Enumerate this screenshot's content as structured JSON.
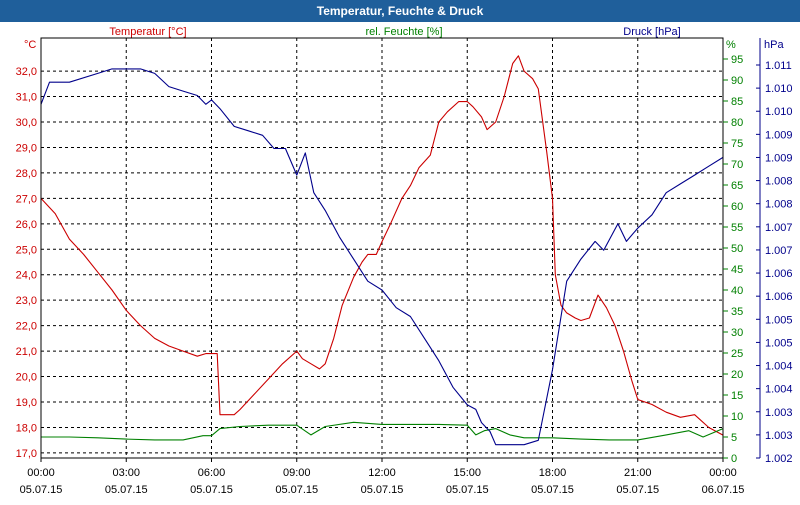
{
  "window": {
    "title": "Temperatur, Feuchte & Druck"
  },
  "chart_data": {
    "type": "line",
    "title": "Temperatur, Feuchte & Druck",
    "x": {
      "ticks": [
        {
          "time": "00:00",
          "date": "05.07.15"
        },
        {
          "time": "03:00",
          "date": "05.07.15"
        },
        {
          "time": "06:00",
          "date": "05.07.15"
        },
        {
          "time": "09:00",
          "date": "05.07.15"
        },
        {
          "time": "12:00",
          "date": "05.07.15"
        },
        {
          "time": "15:00",
          "date": "05.07.15"
        },
        {
          "time": "18:00",
          "date": "05.07.15"
        },
        {
          "time": "21:00",
          "date": "05.07.15"
        },
        {
          "time": "00:00",
          "date": "06.07.15"
        }
      ],
      "range_hours": [
        0,
        24
      ]
    },
    "axes": {
      "temperature": {
        "name": "Temperatur [°C]",
        "unit": "°C",
        "color": "#cc0000",
        "ylim": [
          16.8,
          33.3
        ],
        "ticks": [
          "17,0",
          "18,0",
          "19,0",
          "20,0",
          "21,0",
          "22,0",
          "23,0",
          "24,0",
          "25,0",
          "26,0",
          "27,0",
          "28,0",
          "29,0",
          "30,0",
          "31,0",
          "32,0"
        ]
      },
      "humidity": {
        "name": "rel. Feuchte [%]",
        "unit": "%",
        "color": "#008000",
        "ylim": [
          0,
          100
        ],
        "ticks": [
          "0",
          "5",
          "10",
          "15",
          "20",
          "25",
          "30",
          "35",
          "40",
          "45",
          "50",
          "55",
          "60",
          "65",
          "70",
          "75",
          "80",
          "85",
          "90",
          "95"
        ]
      },
      "pressure": {
        "name": "Druck [hPa]",
        "unit": "hPa",
        "color": "#00008b",
        "ylim": [
          1002.0,
          1011.5
        ],
        "ticks": [
          "1.002",
          "1.003",
          "1.003",
          "1.004",
          "1.004",
          "1.005",
          "1.005",
          "1.006",
          "1.006",
          "1.007",
          "1.007",
          "1.008",
          "1.008",
          "1.009",
          "1.009",
          "1.010",
          "1.010",
          "1.011"
        ]
      }
    },
    "series": [
      {
        "name": "Temperatur [°C]",
        "axis": "temperature",
        "color": "#cc0000",
        "points": [
          [
            0.0,
            27.0
          ],
          [
            0.5,
            26.4
          ],
          [
            1.0,
            25.4
          ],
          [
            1.5,
            24.8
          ],
          [
            2.0,
            24.1
          ],
          [
            2.5,
            23.4
          ],
          [
            3.0,
            22.6
          ],
          [
            3.5,
            22.0
          ],
          [
            4.0,
            21.5
          ],
          [
            4.5,
            21.2
          ],
          [
            5.0,
            21.0
          ],
          [
            5.5,
            20.8
          ],
          [
            5.8,
            20.9
          ],
          [
            6.0,
            20.9
          ],
          [
            6.2,
            20.9
          ],
          [
            6.3,
            18.5
          ],
          [
            6.5,
            18.5
          ],
          [
            6.8,
            18.5
          ],
          [
            7.0,
            18.7
          ],
          [
            7.5,
            19.3
          ],
          [
            8.0,
            19.9
          ],
          [
            8.5,
            20.5
          ],
          [
            9.0,
            21.0
          ],
          [
            9.2,
            20.7
          ],
          [
            9.5,
            20.5
          ],
          [
            9.8,
            20.3
          ],
          [
            10.0,
            20.5
          ],
          [
            10.3,
            21.5
          ],
          [
            10.6,
            22.8
          ],
          [
            11.0,
            23.9
          ],
          [
            11.3,
            24.5
          ],
          [
            11.5,
            24.8
          ],
          [
            11.8,
            24.8
          ],
          [
            12.0,
            25.3
          ],
          [
            12.3,
            26.0
          ],
          [
            12.7,
            27.0
          ],
          [
            13.0,
            27.5
          ],
          [
            13.3,
            28.2
          ],
          [
            13.7,
            28.7
          ],
          [
            14.0,
            30.0
          ],
          [
            14.3,
            30.4
          ],
          [
            14.7,
            30.8
          ],
          [
            15.0,
            30.8
          ],
          [
            15.2,
            30.6
          ],
          [
            15.5,
            30.2
          ],
          [
            15.7,
            29.7
          ],
          [
            16.0,
            30.0
          ],
          [
            16.3,
            31.0
          ],
          [
            16.6,
            32.3
          ],
          [
            16.8,
            32.6
          ],
          [
            17.0,
            32.0
          ],
          [
            17.3,
            31.7
          ],
          [
            17.5,
            31.3
          ],
          [
            17.8,
            28.8
          ],
          [
            18.0,
            27.0
          ],
          [
            18.1,
            24.0
          ],
          [
            18.3,
            22.8
          ],
          [
            18.5,
            22.5
          ],
          [
            18.8,
            22.3
          ],
          [
            19.0,
            22.2
          ],
          [
            19.3,
            22.3
          ],
          [
            19.6,
            23.2
          ],
          [
            19.9,
            22.7
          ],
          [
            20.2,
            22.0
          ],
          [
            20.5,
            21.0
          ],
          [
            20.8,
            19.8
          ],
          [
            21.0,
            19.1
          ],
          [
            21.5,
            18.9
          ],
          [
            22.0,
            18.6
          ],
          [
            22.5,
            18.4
          ],
          [
            23.0,
            18.5
          ],
          [
            23.5,
            18.0
          ],
          [
            24.0,
            17.7
          ]
        ]
      },
      {
        "name": "rel. Feuchte [%]",
        "axis": "humidity",
        "color": "#008000",
        "points": [
          [
            0.0,
            5.0
          ],
          [
            1.0,
            5.0
          ],
          [
            2.0,
            4.8
          ],
          [
            3.0,
            4.5
          ],
          [
            4.0,
            4.3
          ],
          [
            5.0,
            4.3
          ],
          [
            5.7,
            5.3
          ],
          [
            6.0,
            5.3
          ],
          [
            6.3,
            7.0
          ],
          [
            7.0,
            7.5
          ],
          [
            8.0,
            7.8
          ],
          [
            9.0,
            7.8
          ],
          [
            9.5,
            5.5
          ],
          [
            10.0,
            7.5
          ],
          [
            11.0,
            8.5
          ],
          [
            12.0,
            8.0
          ],
          [
            13.0,
            8.0
          ],
          [
            14.0,
            8.0
          ],
          [
            15.0,
            7.8
          ],
          [
            15.3,
            5.5
          ],
          [
            15.6,
            6.5
          ],
          [
            16.0,
            7.0
          ],
          [
            16.5,
            5.5
          ],
          [
            17.0,
            4.8
          ],
          [
            18.0,
            4.8
          ],
          [
            19.0,
            4.5
          ],
          [
            20.0,
            4.3
          ],
          [
            21.0,
            4.3
          ],
          [
            22.0,
            5.5
          ],
          [
            22.8,
            6.5
          ],
          [
            23.3,
            5.0
          ],
          [
            24.0,
            7.0
          ]
        ]
      },
      {
        "name": "Druck [hPa]",
        "axis": "pressure",
        "color": "#00008b",
        "points": [
          [
            0.0,
            1010.0
          ],
          [
            0.3,
            1010.5
          ],
          [
            1.0,
            1010.5
          ],
          [
            2.0,
            1010.7
          ],
          [
            2.5,
            1010.8
          ],
          [
            3.0,
            1010.8
          ],
          [
            3.5,
            1010.8
          ],
          [
            4.0,
            1010.7
          ],
          [
            4.5,
            1010.4
          ],
          [
            5.0,
            1010.3
          ],
          [
            5.5,
            1010.2
          ],
          [
            5.8,
            1010.0
          ],
          [
            6.0,
            1010.1
          ],
          [
            6.3,
            1009.9
          ],
          [
            6.8,
            1009.5
          ],
          [
            7.3,
            1009.4
          ],
          [
            7.8,
            1009.3
          ],
          [
            8.2,
            1009.0
          ],
          [
            8.6,
            1009.0
          ],
          [
            9.0,
            1008.4
          ],
          [
            9.3,
            1008.9
          ],
          [
            9.6,
            1008.0
          ],
          [
            10.0,
            1007.6
          ],
          [
            10.5,
            1007.0
          ],
          [
            11.0,
            1006.5
          ],
          [
            11.5,
            1006.0
          ],
          [
            12.0,
            1005.8
          ],
          [
            12.5,
            1005.4
          ],
          [
            13.0,
            1005.2
          ],
          [
            13.5,
            1004.7
          ],
          [
            14.0,
            1004.2
          ],
          [
            14.5,
            1003.6
          ],
          [
            15.0,
            1003.2
          ],
          [
            15.3,
            1003.1
          ],
          [
            15.5,
            1002.8
          ],
          [
            15.8,
            1002.6
          ],
          [
            16.0,
            1002.3
          ],
          [
            16.5,
            1002.3
          ],
          [
            17.0,
            1002.3
          ],
          [
            17.5,
            1002.4
          ],
          [
            18.0,
            1004.0
          ],
          [
            18.5,
            1006.0
          ],
          [
            19.0,
            1006.5
          ],
          [
            19.5,
            1006.9
          ],
          [
            19.8,
            1006.7
          ],
          [
            20.3,
            1007.3
          ],
          [
            20.6,
            1006.9
          ],
          [
            21.0,
            1007.2
          ],
          [
            21.5,
            1007.5
          ],
          [
            22.0,
            1008.0
          ],
          [
            22.5,
            1008.2
          ],
          [
            23.0,
            1008.4
          ],
          [
            23.5,
            1008.6
          ],
          [
            24.0,
            1008.8
          ]
        ]
      }
    ],
    "grid": true
  }
}
